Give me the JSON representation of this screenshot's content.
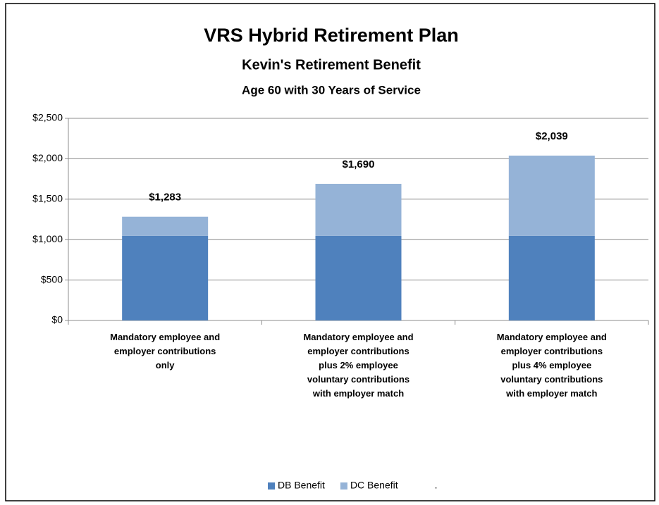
{
  "chart_data": {
    "type": "stacked_bar",
    "title": "VRS Hybrid Retirement Plan",
    "subtitle": "Kevin's Retirement Benefit",
    "subtitle2": "Age 60 with 30 Years of Service",
    "categories": [
      "Mandatory employee and employer contributions only",
      "Mandatory employee and employer contributions plus 2% employee voluntary contributions with employer match",
      "Mandatory employee and employer contributions plus 4% employee voluntary contributions with employer match"
    ],
    "series": [
      {
        "name": "DB Benefit",
        "color": "#4f81bd",
        "values": [
          1047,
          1047,
          1047
        ]
      },
      {
        "name": "DC Benefit",
        "color": "#95b3d7",
        "values": [
          236,
          643,
          992
        ]
      }
    ],
    "totals": [
      1283,
      1690,
      2039
    ],
    "total_labels": [
      "$1,283",
      "$1,690",
      "$2,039"
    ],
    "legend_note": ".",
    "ylim": [
      0,
      2500
    ],
    "yticks": [
      {
        "value": 0,
        "label": "$0"
      },
      {
        "value": 500,
        "label": "$500"
      },
      {
        "value": 1000,
        "label": "$1,000"
      },
      {
        "value": 1500,
        "label": "$1,500"
      },
      {
        "value": 2000,
        "label": "$2,000"
      },
      {
        "value": 2500,
        "label": "$2,500"
      }
    ],
    "grid": true,
    "legend": "bottom"
  }
}
